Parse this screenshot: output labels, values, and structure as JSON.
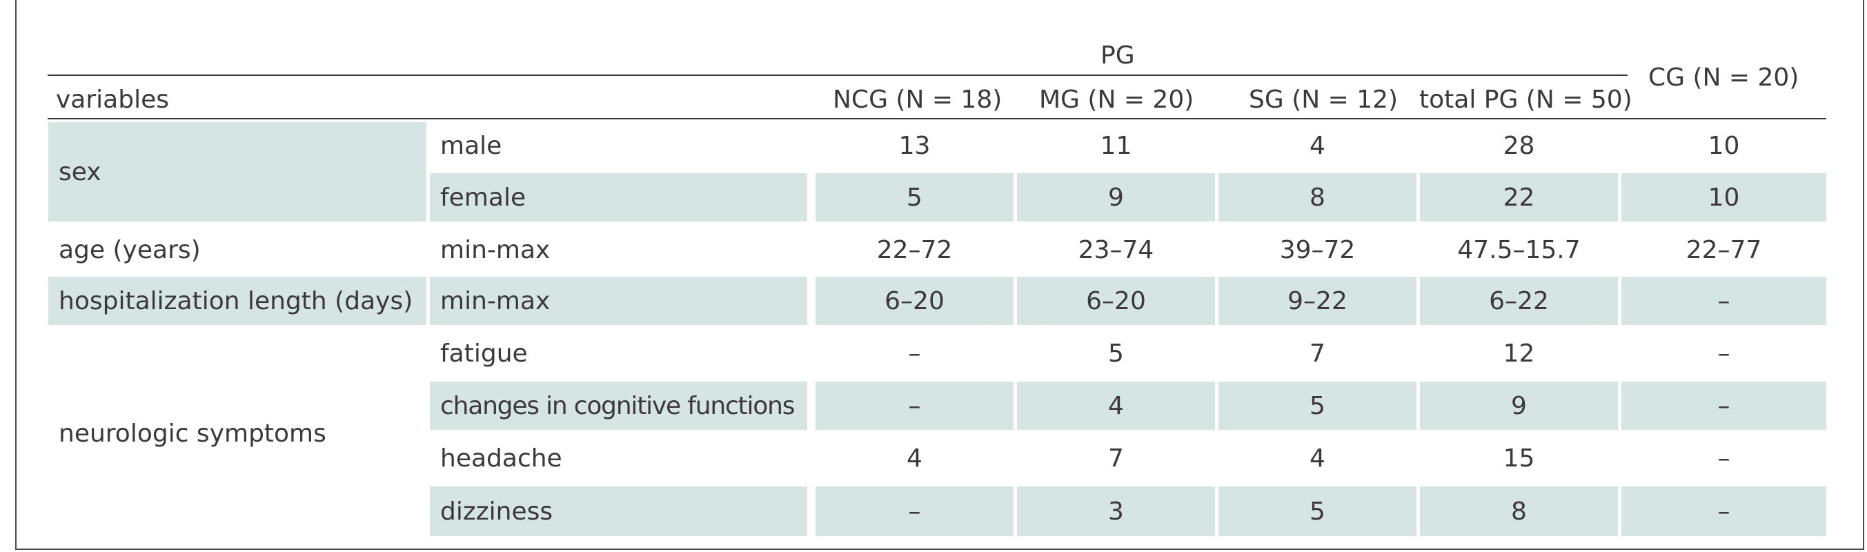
{
  "header": {
    "group_label": "PG",
    "cg_label": "CG (N = 20)",
    "variables_label": "variables",
    "columns": [
      "NCG (N = 18)",
      "MG (N = 20)",
      "SG (N = 12)",
      "total PG (N = 50)"
    ]
  },
  "groups": [
    {
      "label": "sex"
    },
    {
      "label": "age (years)"
    },
    {
      "label": "hospitalization length (days)"
    },
    {
      "label": "neurologic symptoms"
    }
  ],
  "rows": [
    {
      "sub": "male",
      "values": [
        "13",
        "11",
        "4",
        "28",
        "10"
      ]
    },
    {
      "sub": "female",
      "values": [
        "5",
        "9",
        "8",
        "22",
        "10"
      ]
    },
    {
      "sub": "min-max",
      "values": [
        "22–72",
        "23–74",
        "39–72",
        "47.5–15.7",
        "22–77"
      ]
    },
    {
      "sub": "min-max",
      "values": [
        "6–20",
        "6–20",
        "9–22",
        "6–22",
        "–"
      ]
    },
    {
      "sub": "fatigue",
      "values": [
        "–",
        "5",
        "7",
        "12",
        "–"
      ]
    },
    {
      "sub": "changes in cognitive functions",
      "values": [
        "–",
        "4",
        "5",
        "9",
        "–"
      ]
    },
    {
      "sub": "headache",
      "values": [
        "4",
        "7",
        "4",
        "15",
        "–"
      ]
    },
    {
      "sub": "dizziness",
      "values": [
        "–",
        "3",
        "5",
        "8",
        "–"
      ]
    }
  ]
}
